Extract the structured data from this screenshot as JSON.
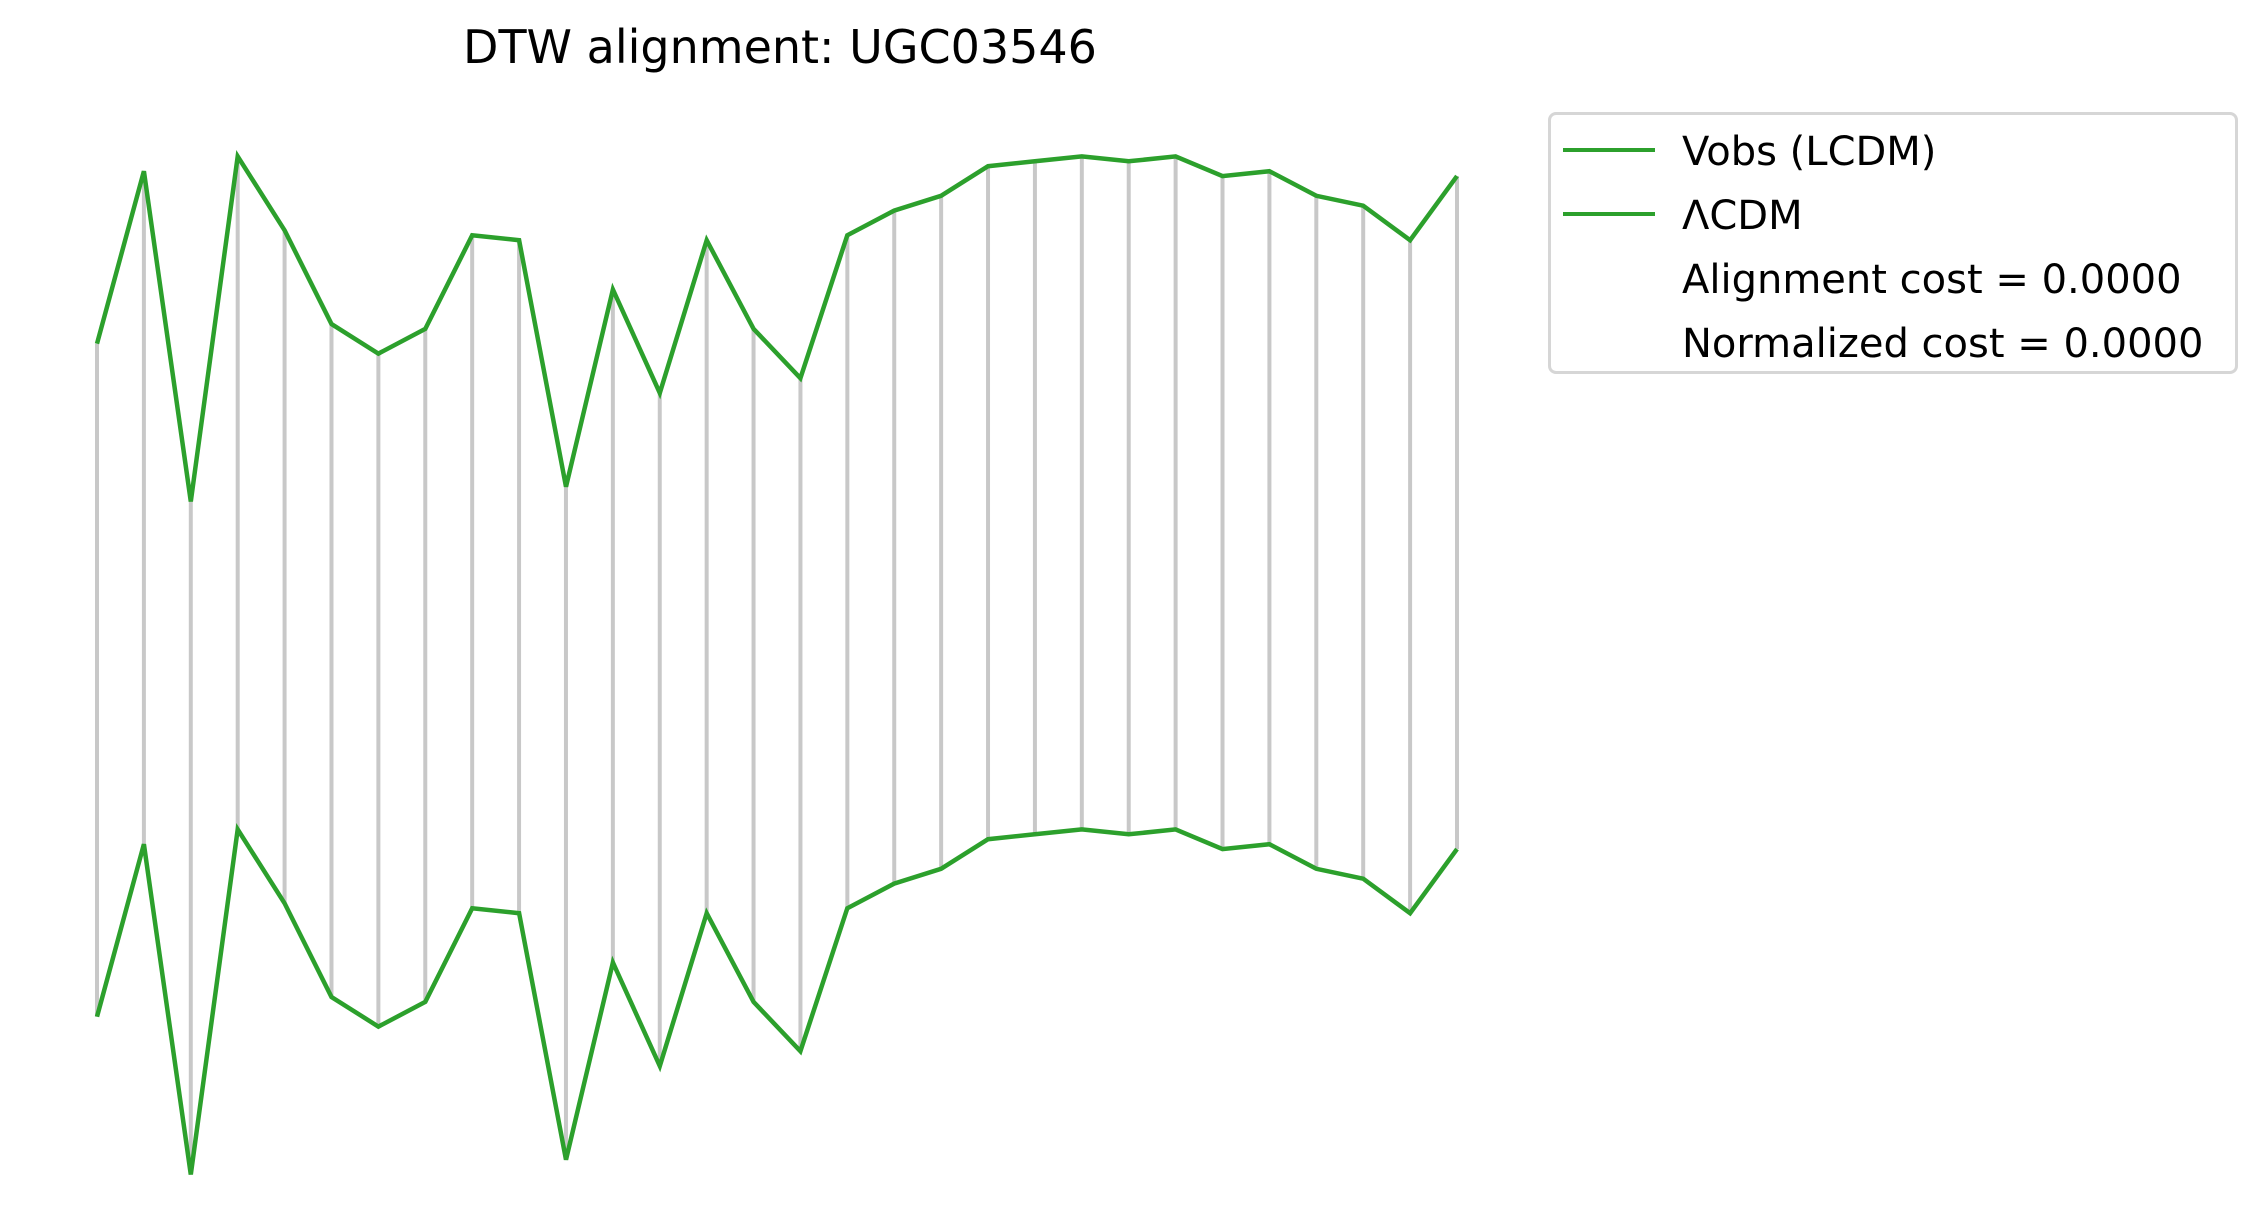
{
  "chart_data": {
    "type": "line",
    "title": "DTW alignment: UGC03546",
    "x": [
      0,
      1,
      2,
      3,
      4,
      5,
      6,
      7,
      8,
      9,
      10,
      11,
      12,
      13,
      14,
      15,
      16,
      17,
      18,
      19,
      20,
      21,
      22,
      23,
      24,
      25,
      26,
      27,
      28,
      29
    ],
    "series": [
      {
        "name": "Vobs (LCDM)",
        "color": "#2ca02c",
        "values": [
          0.53,
          0.88,
          0.21,
          0.91,
          0.76,
          0.57,
          0.51,
          0.56,
          0.75,
          0.74,
          0.24,
          0.64,
          0.43,
          0.74,
          0.56,
          0.46,
          0.75,
          0.8,
          0.83,
          0.89,
          0.9,
          0.91,
          0.9,
          0.91,
          0.87,
          0.88,
          0.83,
          0.81,
          0.74,
          0.87
        ]
      },
      {
        "name": "ΛCDM",
        "color": "#2ca02c",
        "values": [
          0.53,
          0.88,
          0.21,
          0.91,
          0.76,
          0.57,
          0.51,
          0.56,
          0.75,
          0.74,
          0.24,
          0.64,
          0.43,
          0.74,
          0.56,
          0.46,
          0.75,
          0.8,
          0.83,
          0.89,
          0.9,
          0.91,
          0.9,
          0.91,
          0.87,
          0.88,
          0.83,
          0.81,
          0.74,
          0.87
        ]
      }
    ],
    "connector_color": "#c8c8c8",
    "axes_visible": false,
    "legend_position": "upper-right-outside",
    "legend": {
      "entries": [
        "Vobs (LCDM)",
        "ΛCDM"
      ],
      "alignment_cost": "Alignment cost = 0.0000",
      "normalized_cost": "Normalized cost = 0.0000"
    }
  }
}
